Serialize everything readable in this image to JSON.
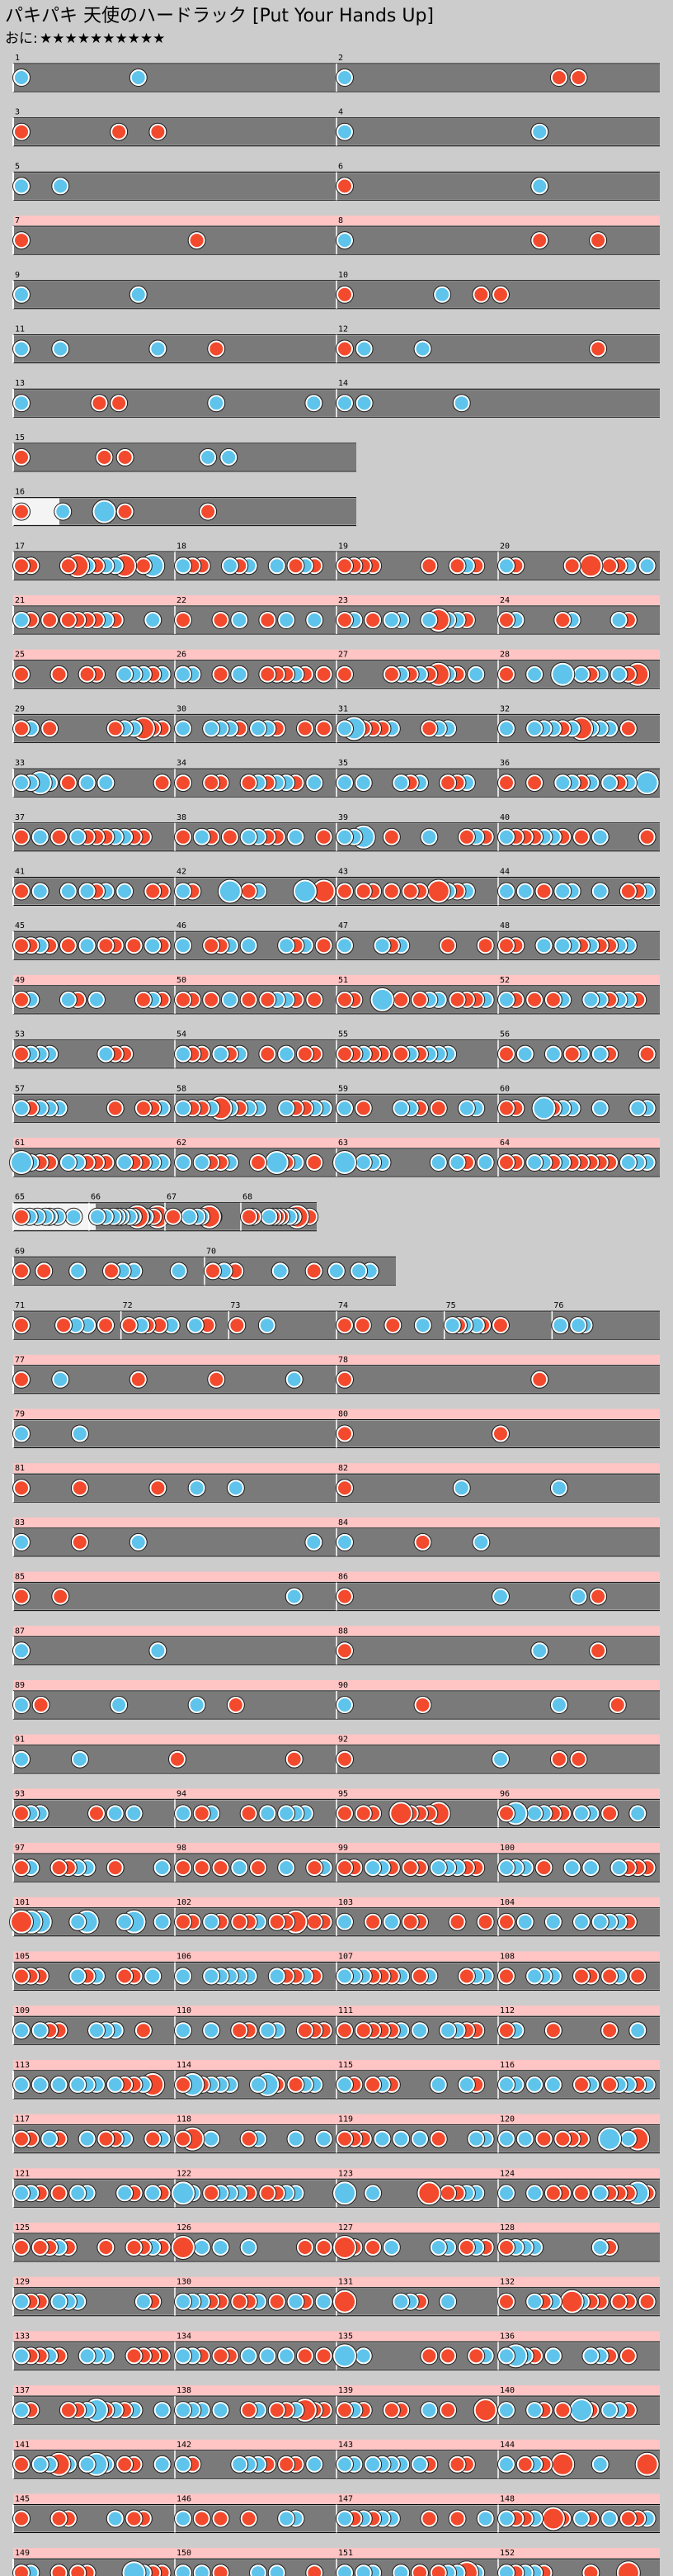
{
  "header": {
    "title": "パキパキ 天使のハードラック [Put Your Hands Up]",
    "course": "おに:",
    "stars": "★★★★★★★★★★"
  },
  "rows": [
    {
      "bars": [
        "1",
        "2"
      ]
    },
    {
      "bars": [
        "3",
        "4"
      ]
    },
    {
      "bars": [
        "5",
        "6"
      ]
    },
    {
      "bars": [
        "7",
        "8"
      ]
    },
    {
      "bars": [
        "9",
        "10"
      ]
    },
    {
      "bars": [
        "11",
        "12"
      ]
    },
    {
      "bars": [
        "13",
        "14"
      ]
    },
    {
      "bars": [
        "15"
      ]
    },
    {
      "bars": [
        "16"
      ]
    },
    {
      "bars": [
        "17",
        "18",
        "19",
        "20"
      ]
    },
    {
      "bars": [
        "21",
        "22",
        "23",
        "24"
      ]
    },
    {
      "bars": [
        "25",
        "26",
        "27",
        "28"
      ]
    },
    {
      "bars": [
        "29",
        "30",
        "31",
        "32"
      ]
    },
    {
      "bars": [
        "33",
        "34",
        "35",
        "36"
      ]
    },
    {
      "bars": [
        "37",
        "38",
        "39",
        "40"
      ]
    },
    {
      "bars": [
        "41",
        "42",
        "43",
        "44"
      ]
    },
    {
      "bars": [
        "45",
        "46",
        "47",
        "48"
      ]
    },
    {
      "bars": [
        "49",
        "50",
        "51",
        "52"
      ]
    },
    {
      "bars": [
        "53",
        "54",
        "55",
        "56"
      ]
    },
    {
      "bars": [
        "57",
        "58",
        "59",
        "60"
      ]
    },
    {
      "bars": [
        "61",
        "62",
        "63",
        "64"
      ]
    },
    {
      "bars": [
        "65",
        "66",
        "67",
        "68"
      ]
    },
    {
      "bars": [
        "69",
        "70"
      ]
    },
    {
      "bars": [
        "71",
        "72",
        "73",
        "74",
        "75",
        "76"
      ]
    },
    {
      "bars": [
        "77",
        "78"
      ]
    },
    {
      "bars": [
        "79",
        "80"
      ]
    },
    {
      "bars": [
        "81",
        "82"
      ]
    },
    {
      "bars": [
        "83",
        "84"
      ]
    },
    {
      "bars": [
        "85",
        "86"
      ]
    },
    {
      "bars": [
        "87",
        "88"
      ]
    },
    {
      "bars": [
        "89",
        "90"
      ]
    },
    {
      "bars": [
        "91",
        "92"
      ]
    },
    {
      "bars": [
        "93",
        "94",
        "95",
        "96"
      ]
    },
    {
      "bars": [
        "97",
        "98",
        "99",
        "100"
      ]
    },
    {
      "bars": [
        "101",
        "102",
        "103",
        "104"
      ]
    },
    {
      "bars": [
        "105",
        "106",
        "107",
        "108"
      ]
    },
    {
      "bars": [
        "109",
        "110",
        "111",
        "112"
      ]
    },
    {
      "bars": [
        "113",
        "114",
        "115",
        "116"
      ]
    },
    {
      "bars": [
        "117",
        "118",
        "119",
        "120"
      ]
    },
    {
      "bars": [
        "121",
        "122",
        "123",
        "124"
      ]
    },
    {
      "bars": [
        "125",
        "126",
        "127",
        "128"
      ]
    },
    {
      "bars": [
        "129",
        "130",
        "131",
        "132"
      ]
    },
    {
      "bars": [
        "133",
        "134",
        "135",
        "136"
      ]
    },
    {
      "bars": [
        "137",
        "138",
        "139",
        "140"
      ]
    },
    {
      "bars": [
        "141",
        "142",
        "143",
        "144"
      ]
    },
    {
      "bars": [
        "145",
        "146",
        "147",
        "148"
      ]
    },
    {
      "bars": [
        "149",
        "150",
        "151",
        "152"
      ]
    }
  ]
}
